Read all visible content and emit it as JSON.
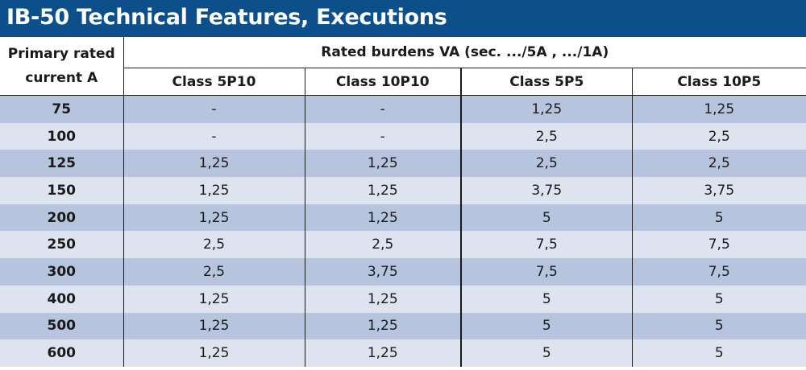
{
  "title": "IB-50 Technical Features, Executions",
  "header": {
    "primary_line1": "Primary rated",
    "primary_line2": "current  A",
    "rated_burdens": "Rated burdens VA  (sec. .../5A , .../1A)",
    "classes": [
      "Class 5P10",
      "Class 10P10",
      "Class 5P5",
      "Class 10P5"
    ]
  },
  "rows": [
    {
      "current": "75",
      "values": [
        "-",
        "-",
        "1,25",
        "1,25"
      ]
    },
    {
      "current": "100",
      "values": [
        "-",
        "-",
        "2,5",
        "2,5"
      ]
    },
    {
      "current": "125",
      "values": [
        "1,25",
        "1,25",
        "2,5",
        "2,5"
      ]
    },
    {
      "current": "150",
      "values": [
        "1,25",
        "1,25",
        "3,75",
        "3,75"
      ]
    },
    {
      "current": "200",
      "values": [
        "1,25",
        "1,25",
        "5",
        "5"
      ]
    },
    {
      "current": "250",
      "values": [
        "2,5",
        "2,5",
        "7,5",
        "7,5"
      ]
    },
    {
      "current": "300",
      "values": [
        "2,5",
        "3,75",
        "7,5",
        "7,5"
      ]
    },
    {
      "current": "400",
      "values": [
        "1,25",
        "1,25",
        "5",
        "5"
      ]
    },
    {
      "current": "500",
      "values": [
        "1,25",
        "1,25",
        "5",
        "5"
      ]
    },
    {
      "current": "600",
      "values": [
        "1,25",
        "1,25",
        "5",
        "5"
      ]
    }
  ],
  "colors": {
    "title_bg": "#0d4f8b",
    "row_dark": "#b7c4dd",
    "row_light": "#dde3ef"
  }
}
